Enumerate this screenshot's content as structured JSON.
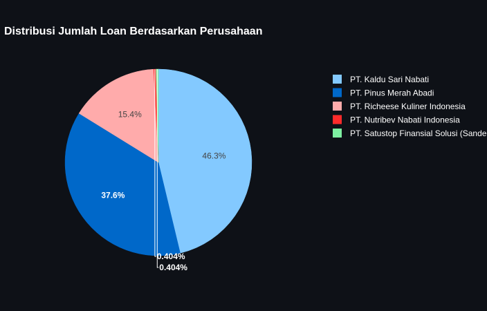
{
  "chart_data": {
    "type": "pie",
    "title": "Distribusi Jumlah Loan Berdasarkan Perusahaan",
    "categories": [
      "PT. Kaldu Sari Nabati",
      "PT. Pinus Merah Abadi",
      "PT. Richeese Kuliner Indonesia",
      "PT. Nutribev Nabati Indonesia",
      "PT. Satustop Finansial Solusi (Sande"
    ],
    "values": [
      46.3,
      37.6,
      15.4,
      0.404,
      0.404
    ],
    "labels": [
      "46.3%",
      "37.6%",
      "15.4%",
      "0.404%",
      "0.404%"
    ],
    "colors": [
      "#83c9ff",
      "#0068c9",
      "#ffabab",
      "#ff2b2b",
      "#7defa1"
    ],
    "label_colors": [
      "#444444",
      "#ffffff",
      "#444444",
      "#ffffff",
      "#ffffff"
    ],
    "legend_position": "right",
    "direction": "clockwise",
    "start_angle": "top"
  }
}
